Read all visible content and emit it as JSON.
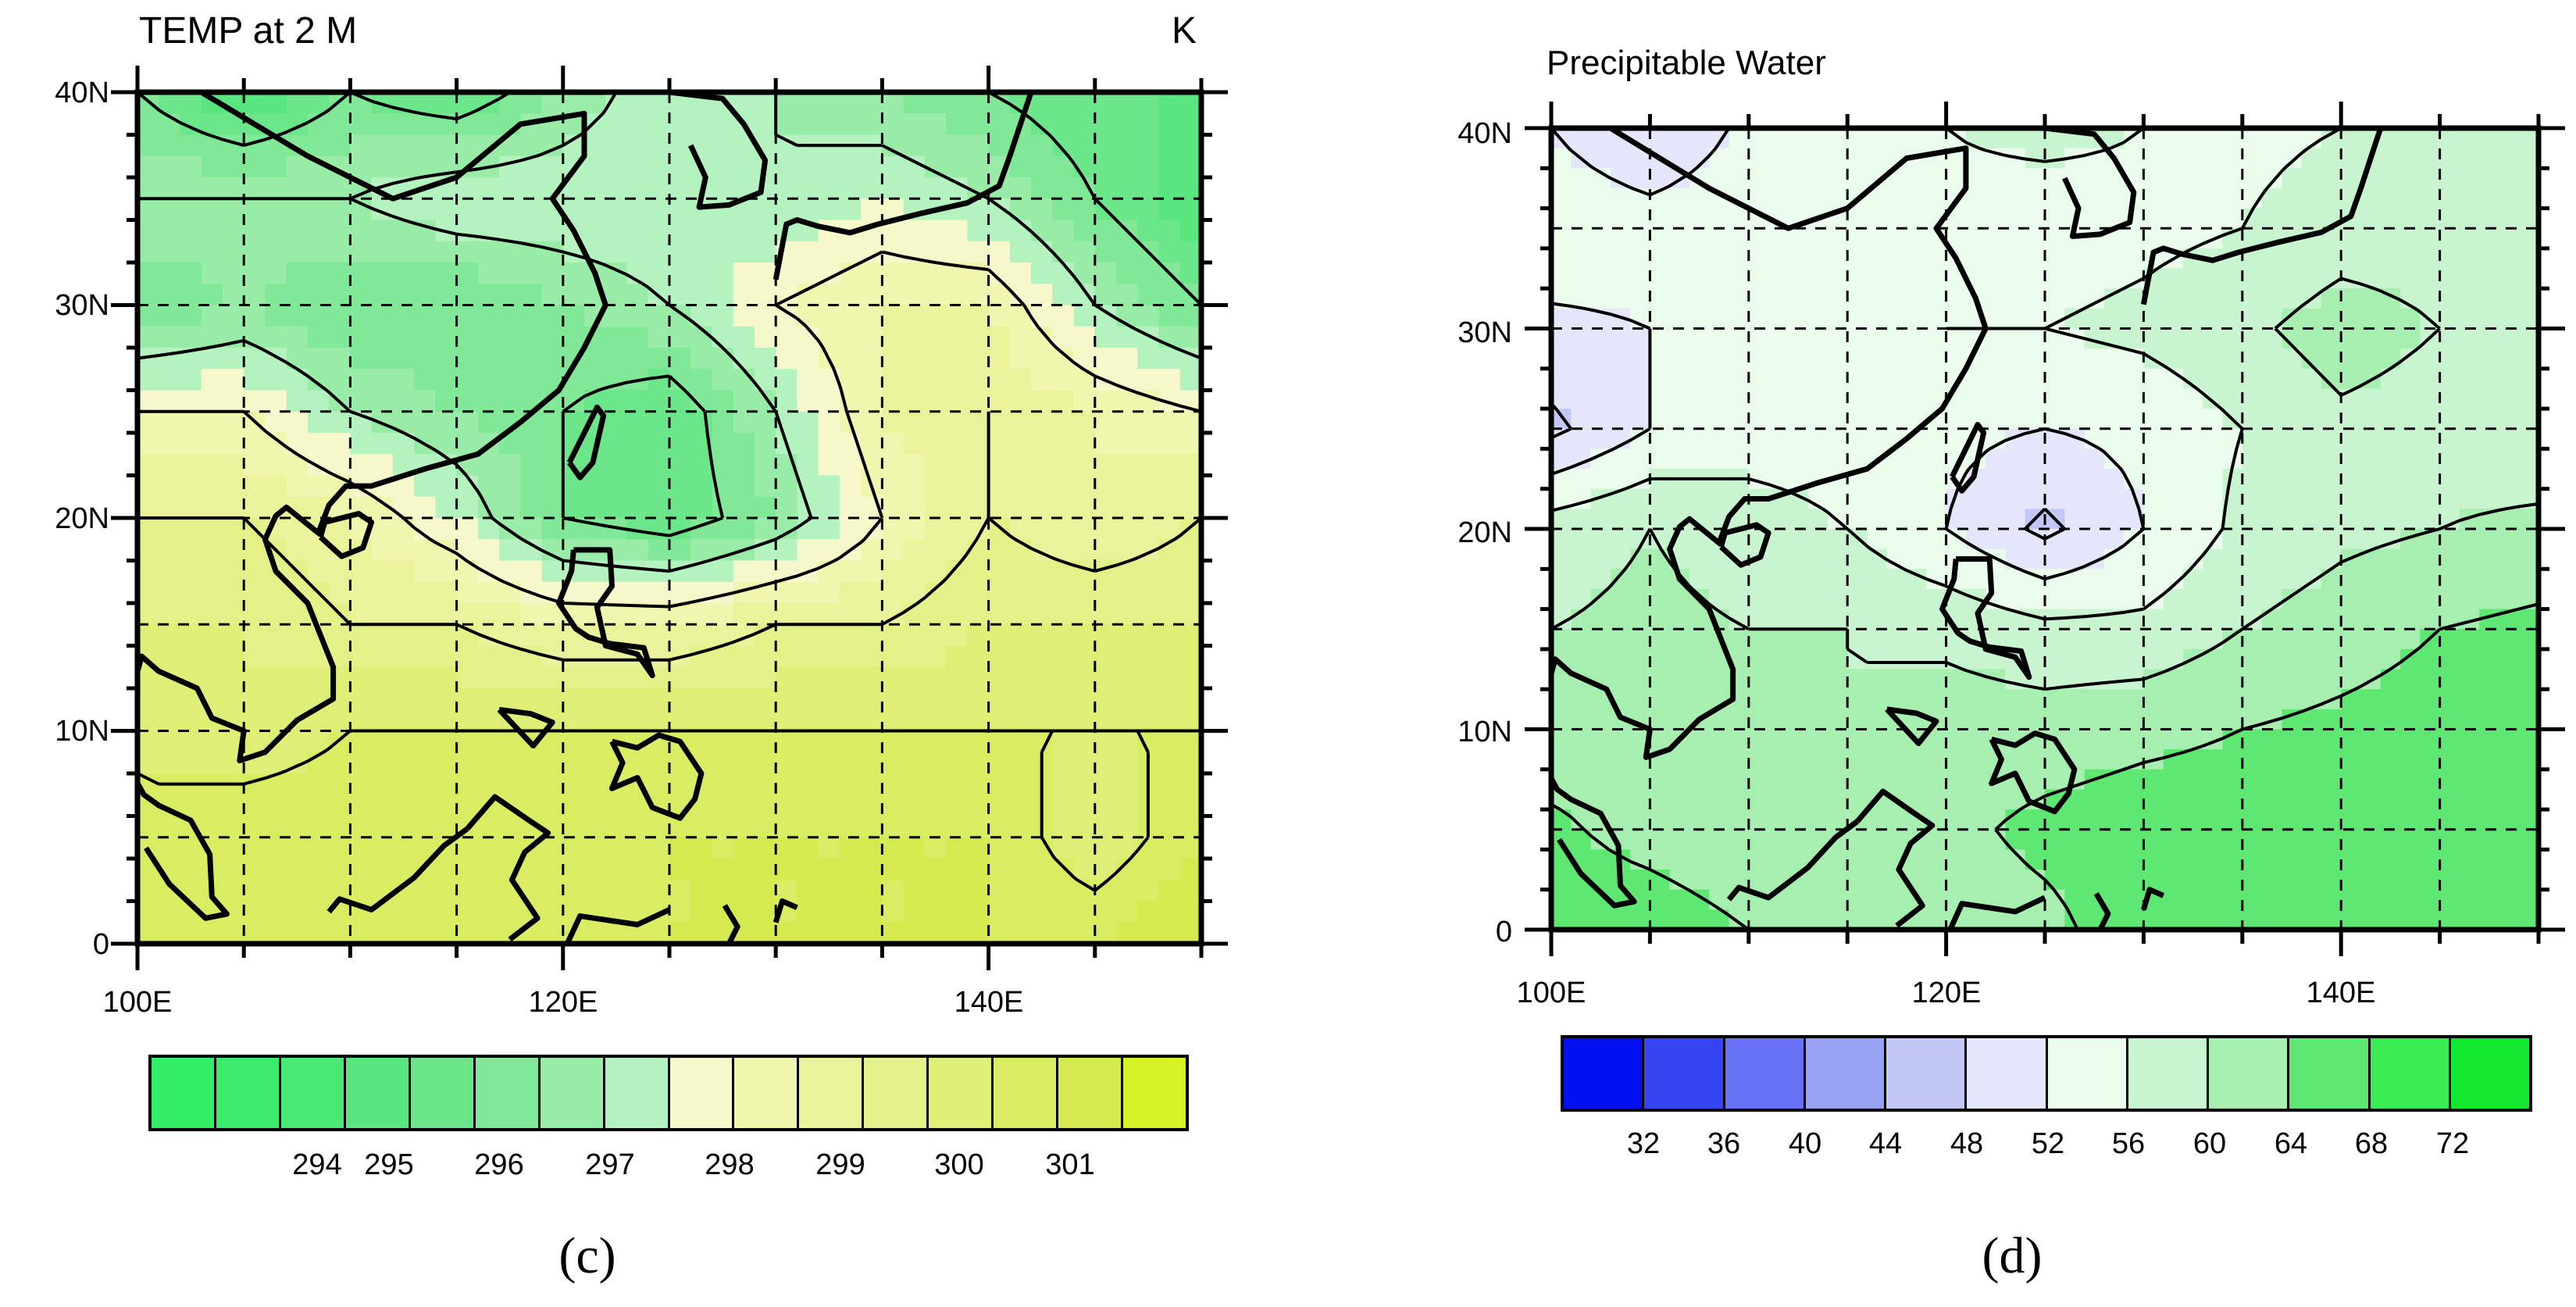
{
  "panels": [
    {
      "id": "c",
      "title": "TEMP at 2 M",
      "units": "K",
      "lat_labels": [
        "40N",
        "30N",
        "20N",
        "10N",
        "0"
      ],
      "lon_labels": [
        "100E",
        "120E",
        "140E"
      ],
      "colorbar": {
        "colors": [
          "#33ee66",
          "#3ceb6b",
          "#4ae874",
          "#5ae67f",
          "#6be68b",
          "#80e897",
          "#98eca8",
          "#b4f2c0",
          "#f6f8cc",
          "#f1f6ae",
          "#eaf39a",
          "#e4f088",
          "#dfee75",
          "#d9ec62",
          "#d4ea4e",
          "#d6f226"
        ],
        "labels": [
          "294",
          "295",
          "296",
          "297",
          "298",
          "299",
          "300",
          "301"
        ]
      },
      "letter": "(c)"
    },
    {
      "id": "d",
      "title": "Precipitable Water",
      "lat_labels": [
        "40N",
        "30N",
        "20N",
        "10N",
        "0"
      ],
      "lon_labels": [
        "100E",
        "120E",
        "140E"
      ],
      "colorbar": {
        "colors": [
          "#0010f0",
          "#3545f2",
          "#6772f4",
          "#9aa2f3",
          "#c3c7f6",
          "#e4e6fb",
          "#eafcec",
          "#c8f5cf",
          "#a6efb0",
          "#5ee873",
          "#3aeb52",
          "#14e830"
        ],
        "labels": [
          "32",
          "36",
          "40",
          "44",
          "48",
          "52",
          "56",
          "60",
          "64",
          "68",
          "72"
        ]
      },
      "letter": "(d)"
    }
  ],
  "chart_data": [
    {
      "type": "heatmap",
      "title": "TEMP at 2 M",
      "units": "K",
      "xlabel": "",
      "ylabel": "",
      "xlim": [
        100,
        150
      ],
      "ylim": [
        0,
        40
      ],
      "x_ticks": [
        "100E",
        "120E",
        "140E"
      ],
      "y_ticks": [
        "0",
        "10N",
        "20N",
        "30N",
        "40N"
      ],
      "colorbar_levels": [
        294,
        295,
        296,
        297,
        298,
        299,
        300,
        301
      ],
      "colorbar_range": [
        293.5,
        301.5
      ],
      "field": {
        "lats": [
          40,
          35,
          30,
          25,
          20,
          15,
          10,
          5,
          0
        ],
        "lons": [
          100,
          105,
          110,
          115,
          120,
          125,
          130,
          135,
          140,
          145,
          150
        ],
        "values": [
          [
            296.0,
            295.0,
            296.0,
            295.5,
            296.5,
            297.5,
            297.0,
            296.5,
            296.0,
            295.5,
            295.5
          ],
          [
            297.0,
            297.0,
            297.0,
            297.5,
            297.5,
            297.5,
            297.0,
            297.5,
            297.0,
            296.0,
            295.0
          ],
          [
            296.0,
            296.5,
            296.0,
            296.0,
            296.5,
            297.0,
            298.0,
            298.5,
            298.5,
            297.0,
            296.0
          ],
          [
            298.0,
            298.0,
            297.0,
            296.5,
            296.0,
            295.5,
            297.0,
            298.5,
            299.0,
            298.5,
            298.0
          ],
          [
            299.0,
            299.0,
            298.5,
            297.5,
            296.0,
            295.5,
            296.5,
            298.0,
            299.0,
            298.5,
            299.0
          ],
          [
            299.5,
            299.5,
            299.0,
            299.0,
            298.5,
            298.5,
            299.0,
            299.0,
            299.5,
            299.5,
            299.5
          ],
          [
            300.0,
            299.5,
            300.0,
            300.0,
            300.0,
            300.0,
            300.0,
            300.0,
            300.0,
            300.0,
            300.0
          ],
          [
            300.0,
            300.5,
            300.5,
            300.5,
            300.0,
            300.5,
            300.5,
            300.5,
            300.5,
            299.5,
            300.5
          ],
          [
            300.5,
            300.5,
            300.0,
            300.5,
            300.5,
            300.5,
            300.5,
            300.5,
            300.5,
            300.5,
            301.0
          ]
        ]
      }
    },
    {
      "type": "heatmap",
      "title": "Precipitable Water",
      "xlabel": "",
      "ylabel": "",
      "xlim": [
        100,
        150
      ],
      "ylim": [
        0,
        40
      ],
      "x_ticks": [
        "100E",
        "120E",
        "140E"
      ],
      "y_ticks": [
        "0",
        "10N",
        "20N",
        "30N",
        "40N"
      ],
      "colorbar_levels": [
        32,
        36,
        40,
        44,
        48,
        52,
        56,
        60,
        64,
        68,
        72
      ],
      "colorbar_range": [
        28,
        76
      ],
      "field": {
        "lats": [
          40,
          35,
          30,
          25,
          20,
          15,
          10,
          5,
          0
        ],
        "lons": [
          100,
          105,
          110,
          115,
          120,
          125,
          130,
          135,
          140,
          145,
          150
        ],
        "values": [
          [
            52,
            48,
            53,
            55,
            56,
            57,
            56,
            55,
            56,
            57,
            56
          ],
          [
            55,
            54,
            55,
            56,
            55,
            54,
            55,
            56,
            58,
            58,
            57
          ],
          [
            51,
            52,
            54,
            55,
            56,
            56,
            57,
            59,
            62,
            60,
            58
          ],
          [
            47,
            52,
            54,
            54,
            53,
            52,
            53,
            56,
            59,
            58,
            57
          ],
          [
            58,
            60,
            58,
            56,
            52,
            47,
            52,
            57,
            59,
            60,
            61
          ],
          [
            60,
            61,
            60,
            60,
            59,
            57,
            57,
            60,
            62,
            64,
            65
          ],
          [
            61,
            62,
            61,
            60,
            62,
            62,
            63,
            64,
            65,
            66,
            66
          ],
          [
            65,
            62,
            60,
            62,
            63,
            65,
            66,
            66,
            66,
            67,
            66
          ],
          [
            67,
            67,
            64,
            63,
            62,
            63,
            66,
            67,
            66,
            66,
            68
          ]
        ]
      }
    }
  ]
}
